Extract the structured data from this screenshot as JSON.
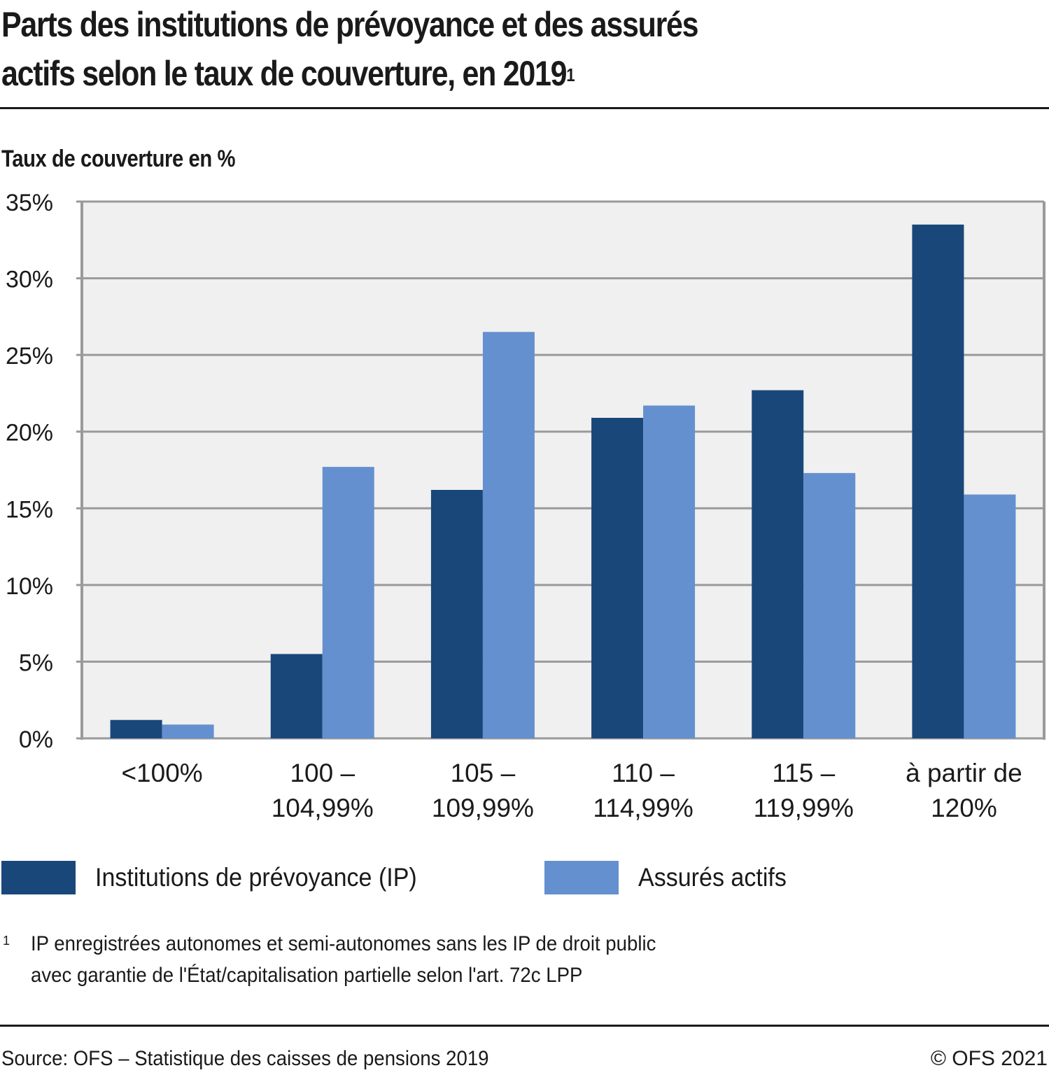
{
  "header": {
    "title_line1": "Parts des institutions de prévoyance et des assurés",
    "title_line2": "actifs selon le taux de couverture, en 2019",
    "title_footnote_ref": "1"
  },
  "chart_data": {
    "type": "bar",
    "title": "Parts des institutions de prévoyance et des assurés actifs selon le taux de couverture, en 2019",
    "ylabel": "Taux de couverture en %",
    "xlabel": "",
    "ylim": [
      0,
      35
    ],
    "yticks": [
      0,
      5,
      10,
      15,
      20,
      25,
      30,
      35
    ],
    "ytick_labels": [
      "0%",
      "5%",
      "10%",
      "15%",
      "20%",
      "25%",
      "30%",
      "35%"
    ],
    "grid": true,
    "categories": [
      [
        "<100%"
      ],
      [
        "100 –",
        "104,99%"
      ],
      [
        "105 –",
        "109,99%"
      ],
      [
        "110 –",
        "114,99%"
      ],
      [
        "115 –",
        "119,99%"
      ],
      [
        "à partir de",
        "120%"
      ]
    ],
    "series": [
      {
        "name": "Institutions de prévoyance (IP)",
        "color": "#1a477a",
        "values": [
          1.2,
          5.5,
          16.2,
          20.9,
          22.7,
          33.5
        ]
      },
      {
        "name": "Assurés actifs",
        "color": "#6490cf",
        "values": [
          0.9,
          17.7,
          26.5,
          21.7,
          17.3,
          15.9
        ]
      }
    ],
    "legend_position": "bottom-left",
    "plot_background": "#f0f0f0",
    "grid_color": "#9a9a9a"
  },
  "footnote": {
    "mark": "1",
    "line1": "IP enregistrées autonomes et semi-autonomes sans les IP de droit public",
    "line2": "avec garantie de l'État/capitalisation partielle selon l'art. 72c LPP"
  },
  "footer": {
    "source": "Source: OFS – Statistique des caisses de pensions 2019",
    "copyright": "© OFS 2021"
  }
}
